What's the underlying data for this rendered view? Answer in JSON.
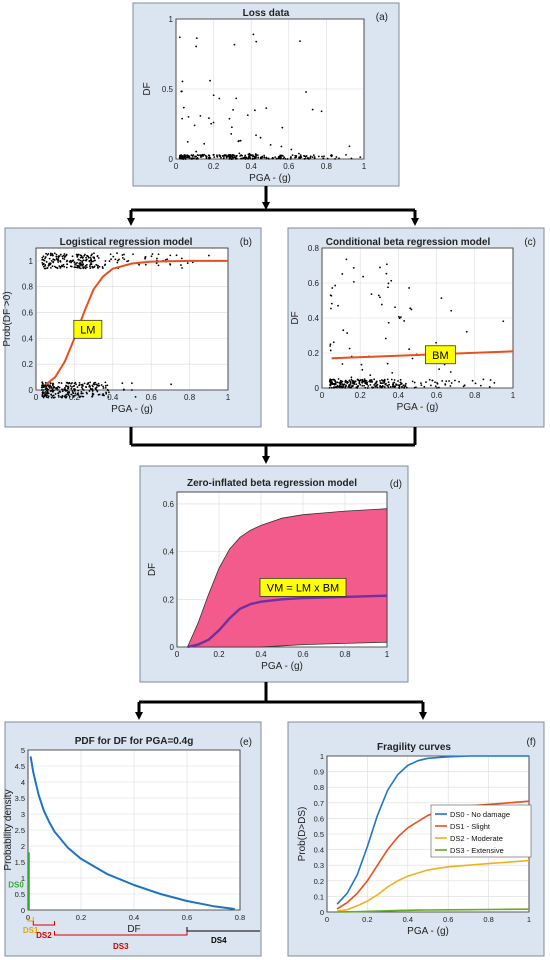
{
  "colors": {
    "panel_bg": "#dbe5f1",
    "panel_border": "#7f8c99",
    "arrow": "#000000",
    "scatter": "#000000",
    "model_line": "#e8501c",
    "label_box": "#ffff00",
    "zib_fill": "#f25b8c",
    "zib_mean": "#7030a0",
    "pdf_line": "#1c74c4",
    "ds0": "#3aa53a",
    "ds1": "#e8a400",
    "ds2": "#d40000",
    "ds3": "#d40000",
    "ds4": "#000000",
    "curve_ds0": "#1f77c8",
    "curve_ds1": "#e8501c",
    "curve_ds2": "#f2b01c",
    "curve_ds3": "#66aa22"
  },
  "panels": {
    "a": {
      "tag": "(a)",
      "title": "Loss data",
      "xlabel": "PGA - (g)",
      "ylabel": "DF",
      "xticks": [
        "0",
        "0.2",
        "0.4",
        "0.6",
        "0.8",
        "1"
      ],
      "yticks": [
        "0",
        "0.5",
        "1"
      ]
    },
    "b": {
      "tag": "(b)",
      "title": "Logistical regression model",
      "xlabel": "PGA - (g)",
      "ylabel": "Prob(DF >0)",
      "xticks": [
        "0",
        "0.2",
        "0.4",
        "0.6",
        "0.8",
        "1"
      ],
      "yticks": [
        "0",
        "0.2",
        "0.4",
        "0.6",
        "0.8",
        "1"
      ],
      "model_label": "LM"
    },
    "c": {
      "tag": "(c)",
      "title": "Conditional beta regression model",
      "xlabel": "PGA - (g)",
      "ylabel": "DF",
      "xticks": [
        "0",
        "0.2",
        "0.4",
        "0.6",
        "0.8",
        "1"
      ],
      "yticks": [
        "0",
        "0.2",
        "0.4",
        "0.6",
        "0.8"
      ],
      "model_label": "BM"
    },
    "d": {
      "tag": "(d)",
      "title": "Zero-inflated beta regression model",
      "xlabel": "PGA - (g)",
      "ylabel": "DF",
      "xticks": [
        "0",
        "0.2",
        "0.4",
        "0.6",
        "0.8",
        "1"
      ],
      "yticks": [
        "0",
        "0.2",
        "0.4",
        "0.6"
      ],
      "model_label": "VM = LM x BM"
    },
    "e": {
      "tag": "(e)",
      "title": "PDF for DF for PGA=0.4g",
      "xlabel": "DF",
      "ylabel": "Probability density",
      "xticks": [
        "0",
        "0.2",
        "0.4",
        "0.6",
        "0.8"
      ],
      "yticks": [
        "0",
        "0.5",
        "1",
        "1.5",
        "2",
        "2.5",
        "3",
        "3.5",
        "4",
        "4.5",
        "5"
      ],
      "ds_labels": [
        "DS0",
        "DS1",
        "DS2",
        "DS3",
        "DS4"
      ]
    },
    "f": {
      "tag": "(f)",
      "title": "Fragility curves",
      "xlabel": "PGA - (g)",
      "ylabel": "Prob(D>DS)",
      "xticks": [
        "0",
        "0.2",
        "0.4",
        "0.6",
        "0.8",
        "1"
      ],
      "yticks": [
        "0",
        "0.1",
        "0.2",
        "0.3",
        "0.4",
        "0.5",
        "0.6",
        "0.7",
        "0.8",
        "0.9",
        "1"
      ],
      "legend": [
        "DS0 - No damage",
        "DS1 - Slight",
        "DS2 - Moderate",
        "DS3 - Extensive"
      ]
    }
  },
  "chart_data": [
    {
      "panel": "b",
      "type": "line",
      "x": [
        0.05,
        0.1,
        0.15,
        0.2,
        0.25,
        0.3,
        0.35,
        0.4,
        0.5,
        0.6,
        0.8,
        1.0
      ],
      "y": [
        0.04,
        0.1,
        0.22,
        0.4,
        0.6,
        0.78,
        0.88,
        0.94,
        0.98,
        0.995,
        1.0,
        1.0
      ],
      "xlim": [
        0,
        1
      ],
      "ylim": [
        0,
        1.1
      ]
    },
    {
      "panel": "c",
      "type": "line",
      "x": [
        0.05,
        1.0
      ],
      "y": [
        0.17,
        0.21
      ],
      "xlim": [
        0,
        1
      ],
      "ylim": [
        0,
        0.8
      ]
    },
    {
      "panel": "d",
      "type": "area",
      "x": [
        0.05,
        0.1,
        0.15,
        0.2,
        0.25,
        0.3,
        0.35,
        0.4,
        0.5,
        0.6,
        0.8,
        1.0
      ],
      "upper": [
        0.0,
        0.1,
        0.22,
        0.33,
        0.41,
        0.46,
        0.49,
        0.51,
        0.54,
        0.555,
        0.57,
        0.58
      ],
      "mean": [
        0.0,
        0.01,
        0.03,
        0.07,
        0.12,
        0.16,
        0.18,
        0.19,
        0.2,
        0.205,
        0.21,
        0.215
      ],
      "lower": [
        0.0,
        0.0,
        0.0,
        0.0,
        0.0,
        0.0,
        0.0,
        0.0,
        0.005,
        0.01,
        0.015,
        0.02
      ],
      "xlim": [
        0,
        1
      ],
      "ylim": [
        0,
        0.65
      ]
    },
    {
      "panel": "e",
      "type": "line",
      "x": [
        0.01,
        0.02,
        0.04,
        0.06,
        0.08,
        0.1,
        0.15,
        0.2,
        0.3,
        0.4,
        0.5,
        0.6,
        0.7,
        0.78
      ],
      "y": [
        4.8,
        4.3,
        3.6,
        3.1,
        2.75,
        2.45,
        1.95,
        1.6,
        1.12,
        0.78,
        0.5,
        0.28,
        0.12,
        0.03
      ],
      "ds0_spike": 1.8,
      "xlim": [
        0,
        0.8
      ],
      "ylim": [
        0,
        5
      ]
    },
    {
      "panel": "f",
      "type": "line",
      "x": [
        0.05,
        0.1,
        0.15,
        0.2,
        0.25,
        0.3,
        0.35,
        0.4,
        0.45,
        0.5,
        0.6,
        0.7,
        0.8,
        0.9,
        1.0
      ],
      "series": [
        {
          "name": "DS0 - No damage",
          "values": [
            0.05,
            0.12,
            0.24,
            0.42,
            0.62,
            0.78,
            0.88,
            0.94,
            0.97,
            0.985,
            0.995,
            1.0,
            1.0,
            1.0,
            1.0
          ]
        },
        {
          "name": "DS1 - Slight",
          "values": [
            0.02,
            0.06,
            0.12,
            0.2,
            0.3,
            0.4,
            0.48,
            0.54,
            0.58,
            0.62,
            0.66,
            0.68,
            0.69,
            0.7,
            0.71
          ]
        },
        {
          "name": "DS2 - Moderate",
          "values": [
            0.005,
            0.015,
            0.04,
            0.07,
            0.11,
            0.16,
            0.2,
            0.23,
            0.25,
            0.27,
            0.29,
            0.3,
            0.31,
            0.32,
            0.33
          ]
        },
        {
          "name": "DS3 - Extensive",
          "values": [
            0.0,
            0.001,
            0.002,
            0.004,
            0.006,
            0.008,
            0.01,
            0.011,
            0.012,
            0.013,
            0.014,
            0.015,
            0.016,
            0.017,
            0.018
          ]
        }
      ],
      "xlim": [
        0,
        1
      ],
      "ylim": [
        0,
        1
      ]
    }
  ]
}
